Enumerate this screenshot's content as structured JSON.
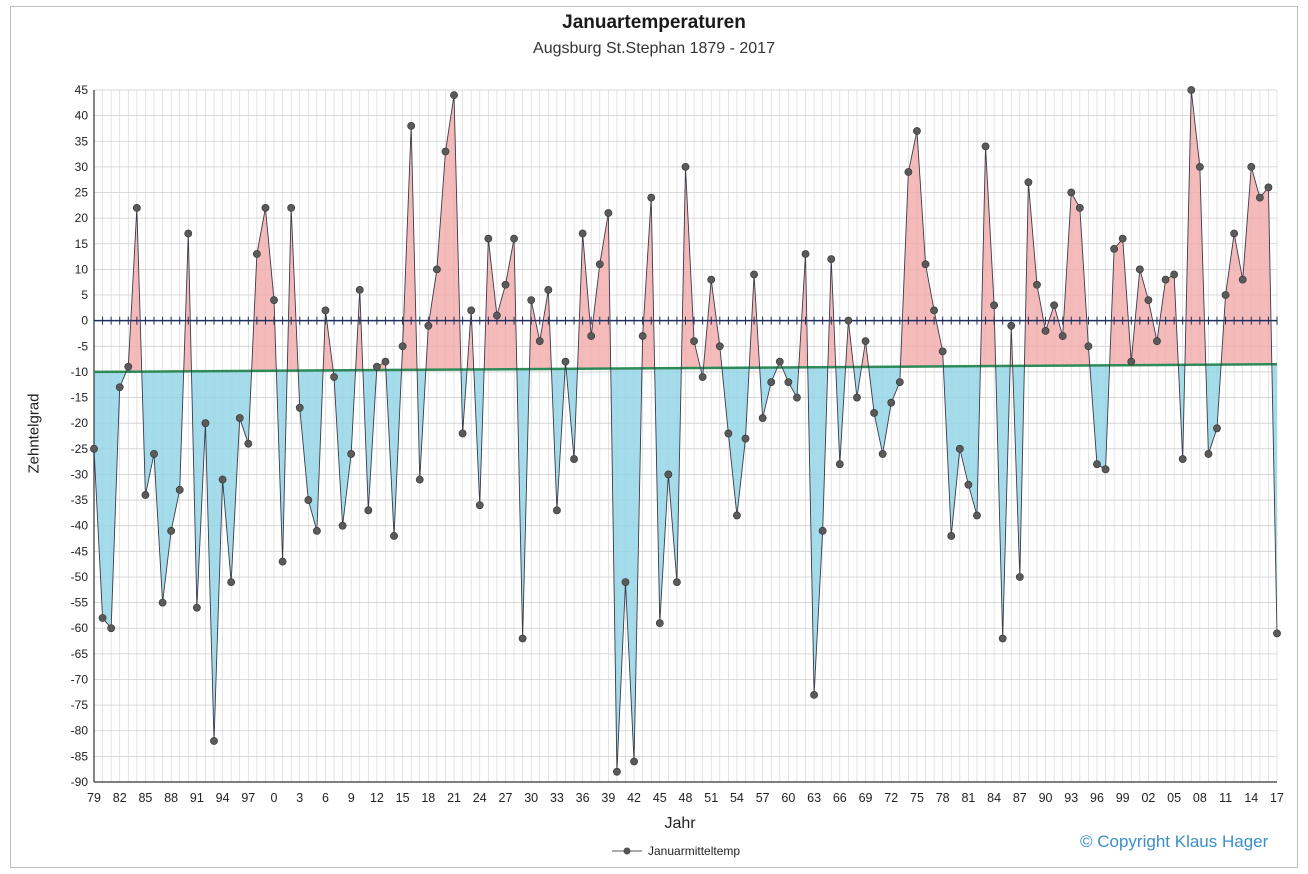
{
  "chart_data": {
    "type": "area",
    "title": "Januartemperaturen",
    "subtitle": "Augsburg St.Stephan 1879 - 2017",
    "xlabel": "Jahr",
    "ylabel": "Zehntelgrad",
    "ylim": [
      -90,
      45
    ],
    "yticks": [
      45,
      40,
      35,
      30,
      25,
      20,
      15,
      10,
      5,
      0,
      -5,
      -10,
      -15,
      -20,
      -25,
      -30,
      -35,
      -40,
      -45,
      -50,
      -55,
      -60,
      -65,
      -70,
      -75,
      -80,
      -85,
      -90
    ],
    "xtick_labels": [
      "79",
      "82",
      "85",
      "88",
      "91",
      "94",
      "97",
      "0",
      "3",
      "6",
      "9",
      "12",
      "15",
      "18",
      "21",
      "24",
      "27",
      "30",
      "33",
      "36",
      "39",
      "42",
      "45",
      "48",
      "51",
      "54",
      "57",
      "60",
      "63",
      "66",
      "69",
      "72",
      "75",
      "78",
      "81",
      "84",
      "87",
      "90",
      "93",
      "96",
      "99",
      "02",
      "05",
      "08",
      "11",
      "14",
      "17"
    ],
    "grid": true,
    "legend_position": "bottom",
    "mean_line": {
      "start": -10,
      "end": -8.5
    },
    "series": [
      {
        "name": "Januarmitteltemp",
        "x_start_year": 1879,
        "values": [
          -25,
          -58,
          -60,
          -13,
          -9,
          22,
          -34,
          -26,
          -55,
          -41,
          -33,
          17,
          -56,
          -20,
          -82,
          -31,
          -51,
          -19,
          -24,
          13,
          22,
          4,
          -47,
          22,
          -17,
          -35,
          -41,
          2,
          -11,
          -40,
          -26,
          6,
          -37,
          -9,
          -8,
          -42,
          -5,
          38,
          -31,
          -1,
          10,
          33,
          44,
          -22,
          2,
          -36,
          16,
          1,
          7,
          16,
          -62,
          4,
          -4,
          6,
          -37,
          -8,
          -27,
          17,
          -3,
          11,
          21,
          -88,
          -51,
          -86,
          -3,
          24,
          -59,
          -30,
          -51,
          30,
          -4,
          -11,
          8,
          -5,
          -22,
          -38,
          -23,
          9,
          -19,
          -12,
          -8,
          -12,
          -15,
          13,
          -73,
          -41,
          12,
          -28,
          0,
          -15,
          -4,
          -18,
          -26,
          -16,
          -12,
          29,
          37,
          11,
          2,
          -6,
          -42,
          -25,
          -32,
          -38,
          34,
          3,
          -62,
          -1,
          -50,
          27,
          7,
          -2,
          3,
          -3,
          25,
          22,
          -5,
          -28,
          -29,
          14,
          16,
          -8,
          10,
          4,
          -4,
          8,
          9,
          -27,
          45,
          30,
          -26,
          -21,
          5,
          17,
          8,
          30,
          24,
          26,
          -61
        ],
        "color": "#555555"
      }
    ],
    "fill_above_color": "#f2a9a9",
    "fill_below_color": "#8fd3e6",
    "mean_line_color": "#2e8b57",
    "zero_line_color": "#1f2f5f"
  },
  "copyright": "© Copyright Klaus Hager"
}
